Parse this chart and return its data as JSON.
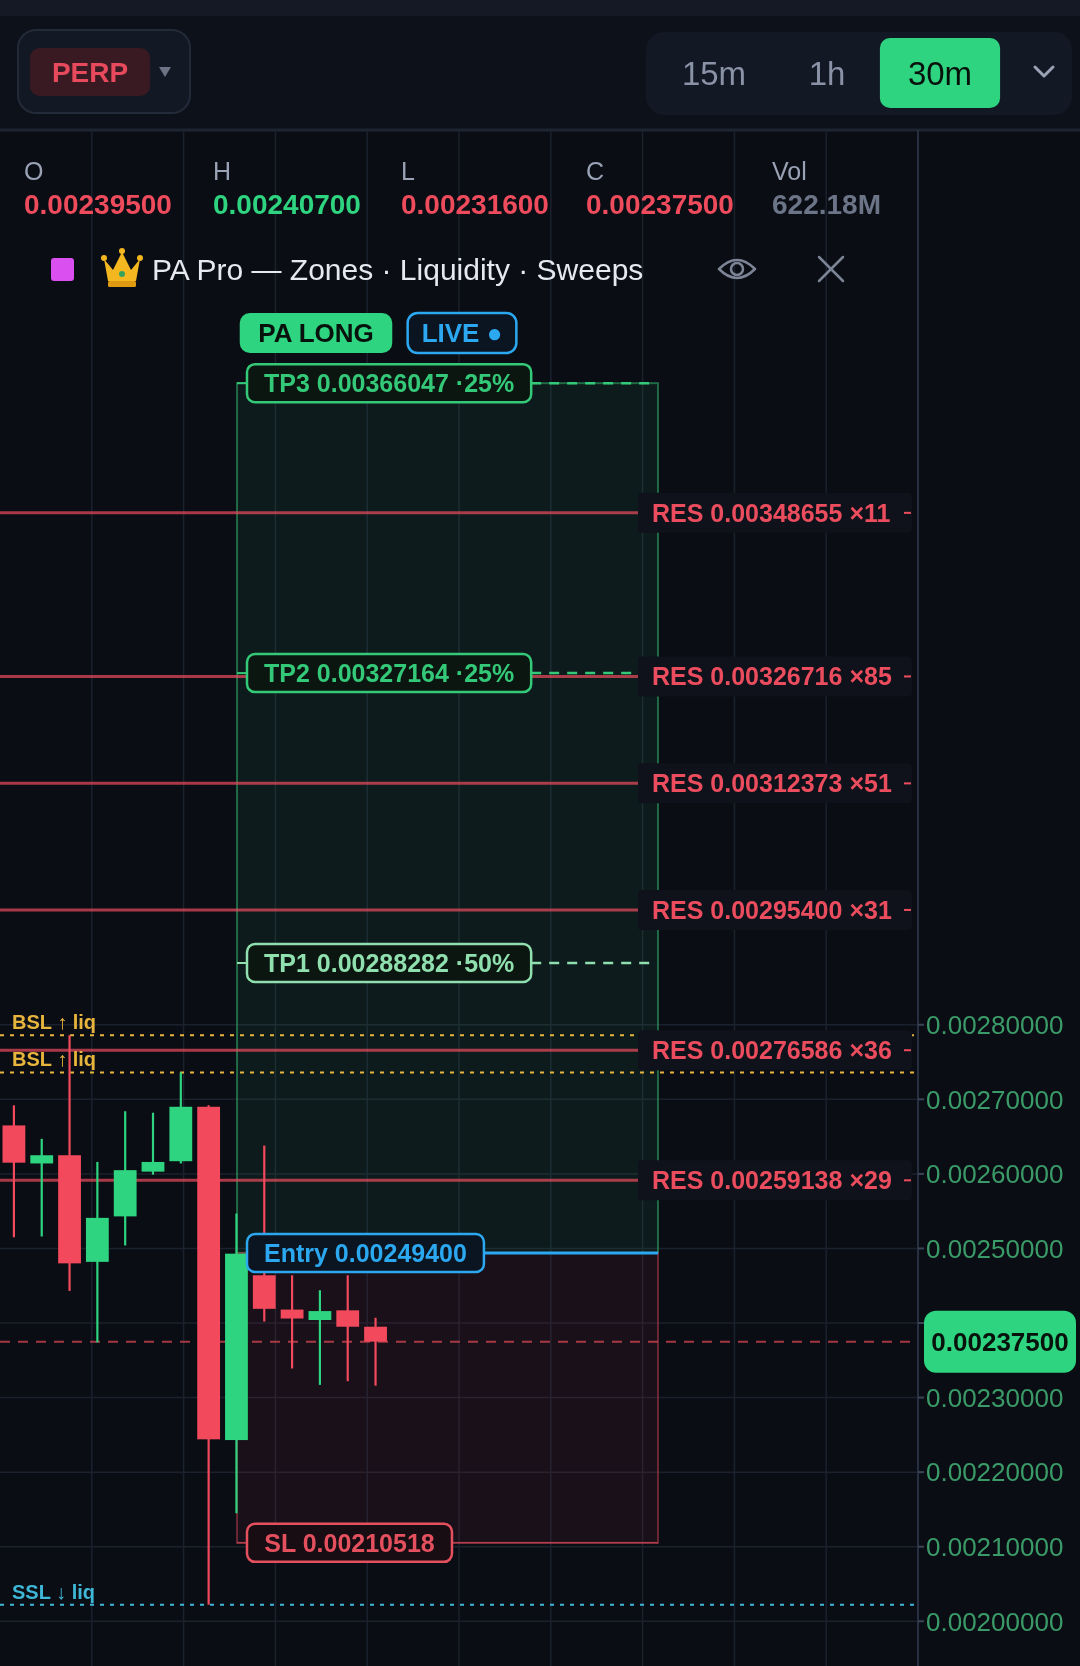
{
  "chart_data": {
    "type": "candlestick",
    "title": "PA Pro — Zones · Liquidity · Sweeps",
    "categories": [
      null,
      null,
      null,
      null,
      null,
      null,
      null,
      null,
      null,
      null,
      null,
      null,
      null,
      null,
      null,
      null,
      null,
      null,
      null,
      null,
      null,
      null,
      null,
      null,
      null,
      null,
      null,
      null,
      null,
      null,
      null,
      null,
      null
    ],
    "ohlc": [
      [
        0.002665,
        0.002692,
        0.002515,
        0.002615
      ],
      [
        0.002614,
        0.002647,
        0.002516,
        0.002625
      ],
      [
        0.002625,
        0.002786,
        0.002443,
        0.00248
      ],
      [
        0.002482,
        0.002616,
        0.002374,
        0.002541
      ],
      [
        0.002543,
        0.002684,
        0.002504,
        0.002605
      ],
      [
        0.002603,
        0.002682,
        0.002599,
        0.002616
      ],
      [
        0.002617,
        0.002736,
        0.002614,
        0.00269
      ],
      [
        0.00269,
        0.002692,
        0.002022,
        0.002244
      ],
      [
        0.002243,
        0.002547,
        0.002145,
        0.002493
      ],
      [
        0.002464,
        0.002638,
        0.002402,
        0.002419
      ],
      [
        0.002418,
        0.002464,
        0.002339,
        0.002406
      ],
      [
        0.002404,
        0.002444,
        0.002317,
        0.002416
      ],
      [
        0.002417,
        0.002464,
        0.002322,
        0.002395
      ],
      [
        0.002395,
        0.002407,
        0.002316,
        0.002375
      ],
      null,
      null,
      null,
      null,
      null,
      null,
      null,
      null,
      null,
      null,
      null,
      null,
      null,
      null,
      null,
      null,
      null,
      null,
      null
    ],
    "colors": [
      "#f2495c",
      "#2ed47f",
      "#f2495c",
      "#2ed47f",
      "#2ed47f",
      "#2ed47f",
      "#2ed47f",
      "#f2495c",
      "#2ed47f",
      "#f2495c",
      "#f2495c",
      "#2ed47f",
      "#f2495c",
      "#f2495c",
      null,
      null,
      null,
      null,
      null,
      null,
      null,
      null,
      null,
      null,
      null,
      null,
      null,
      null,
      null,
      null,
      null,
      null,
      null
    ],
    "ylim": [
      0.00194,
      0.004
    ],
    "yticks": [
      {
        "value": 0.002,
        "label": "0.00200000"
      },
      {
        "value": 0.0021,
        "label": "0.00210000"
      },
      {
        "value": 0.0022,
        "label": "0.00220000"
      },
      {
        "value": 0.0023,
        "label": "0.00230000"
      },
      {
        "value": 0.0024,
        "label": null
      },
      {
        "value": 0.0025,
        "label": "0.00250000"
      },
      {
        "value": 0.0026,
        "label": "0.00260000"
      },
      {
        "value": 0.0027,
        "label": "0.00270000"
      },
      {
        "value": 0.0028,
        "label": "0.00280000"
      }
    ],
    "tick_labels": "y",
    "grid": true,
    "bands": [
      {
        "axis": "y",
        "from": 0.002494,
        "to": 0.00366047,
        "color": "#2fae6c"
      },
      {
        "axis": "y",
        "from": 0.00210518,
        "to": 0.002494,
        "color": "#b33a4c"
      }
    ],
    "ref_lines": [
      {
        "axis": "y",
        "value": 0.00366047,
        "label": "TP3 0.00366047 ·25%",
        "color": "#34c978",
        "line_style": "dashed"
      },
      {
        "axis": "y",
        "value": 0.00327164,
        "label": "TP2 0.00327164 ·25%",
        "color": "#34c978",
        "line_style": "dashed"
      },
      {
        "axis": "y",
        "value": 0.00288282,
        "label": "TP1 0.00288282 ·50%",
        "color": "#8fe0ae",
        "line_style": "dashed"
      },
      {
        "axis": "y",
        "value": 0.002494,
        "label": "Entry 0.00249400",
        "color": "#2ba8f0",
        "line_style": "solid"
      },
      {
        "axis": "y",
        "value": 0.00210518,
        "label": "SL 0.00210518",
        "color": "#e5505f",
        "line_style": "solid"
      },
      {
        "axis": "y",
        "value": 0.00348655,
        "label": "RES 0.00348655 ×11",
        "color": "#ec4d5e",
        "line_style": "solid"
      },
      {
        "axis": "y",
        "value": 0.00326716,
        "label": "RES 0.00326716 ×85",
        "color": "#ec4d5e",
        "line_style": "solid"
      },
      {
        "axis": "y",
        "value": 0.00312373,
        "label": "RES 0.00312373 ×51",
        "color": "#ec4d5e",
        "line_style": "solid"
      },
      {
        "axis": "y",
        "value": 0.002954,
        "label": "RES 0.00295400 ×31",
        "color": "#ec4d5e",
        "line_style": "solid"
      },
      {
        "axis": "y",
        "value": 0.00276586,
        "label": "RES 0.00276586 ×36",
        "color": "#ec4d5e",
        "line_style": "solid"
      },
      {
        "axis": "y",
        "value": 0.00259138,
        "label": "RES 0.00259138 ×29",
        "color": "#ec4d5e",
        "line_style": "solid"
      },
      {
        "axis": "y",
        "value": 0.002786,
        "label": "BSL ↑ liq",
        "color": "#e8b53c",
        "line_style": "dotted"
      },
      {
        "axis": "y",
        "value": 0.002736,
        "label": "BSL ↑ liq",
        "color": "#e8b53c",
        "line_style": "dotted"
      },
      {
        "axis": "y",
        "value": 0.002022,
        "label": "SSL ↓ liq",
        "color": "#3fb8d8",
        "line_style": "dotted"
      },
      {
        "axis": "y",
        "value": 0.002375,
        "label": "0.00237500",
        "color": "#c9444f",
        "line_style": "dashed"
      }
    ],
    "annotations": [
      "PERP",
      "15m",
      "1h",
      "30m",
      "O",
      "0.00239500",
      "H",
      "0.00240700",
      "L",
      "0.00231600",
      "C",
      "0.00237500",
      "Vol",
      "622.18M",
      "PA LONG",
      "LIVE ●"
    ]
  }
}
